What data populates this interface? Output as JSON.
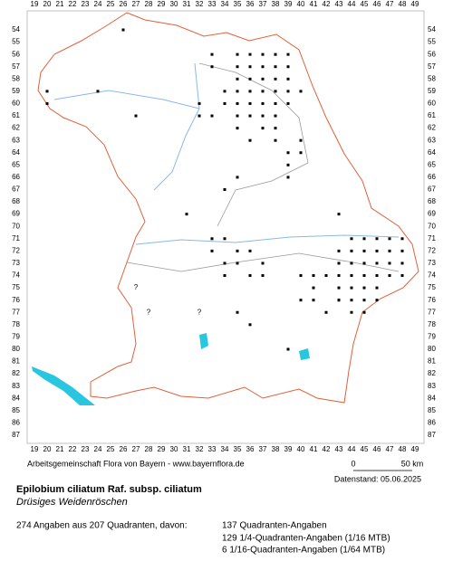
{
  "grid": {
    "columns": [
      19,
      20,
      21,
      22,
      23,
      24,
      25,
      26,
      27,
      28,
      29,
      30,
      31,
      32,
      33,
      34,
      35,
      36,
      37,
      38,
      39,
      40,
      41,
      42,
      43,
      44,
      45,
      46,
      47,
      48,
      49
    ],
    "rows": [
      54,
      55,
      56,
      57,
      58,
      59,
      60,
      61,
      62,
      63,
      64,
      65,
      66,
      67,
      68,
      69,
      70,
      71,
      72,
      73,
      74,
      75,
      76,
      77,
      78,
      79,
      80,
      81,
      82,
      83,
      84,
      85,
      86,
      87
    ]
  },
  "occurrences": [
    [
      26,
      54
    ],
    [
      20,
      59
    ],
    [
      24,
      59
    ],
    [
      20,
      60
    ],
    [
      27,
      61
    ],
    [
      32,
      60
    ],
    [
      32,
      61
    ],
    [
      33,
      56
    ],
    [
      35,
      56
    ],
    [
      36,
      56
    ],
    [
      37,
      56
    ],
    [
      38,
      56
    ],
    [
      39,
      56
    ],
    [
      33,
      57
    ],
    [
      35,
      57
    ],
    [
      36,
      57
    ],
    [
      37,
      57
    ],
    [
      38,
      57
    ],
    [
      39,
      57
    ],
    [
      35,
      58
    ],
    [
      36,
      58
    ],
    [
      37,
      58
    ],
    [
      38,
      58
    ],
    [
      39,
      58
    ],
    [
      34,
      59
    ],
    [
      35,
      59
    ],
    [
      36,
      59
    ],
    [
      37,
      59
    ],
    [
      38,
      59
    ],
    [
      39,
      59
    ],
    [
      40,
      59
    ],
    [
      34,
      60
    ],
    [
      35,
      60
    ],
    [
      36,
      60
    ],
    [
      37,
      60
    ],
    [
      38,
      60
    ],
    [
      39,
      60
    ],
    [
      33,
      61
    ],
    [
      35,
      61
    ],
    [
      36,
      61
    ],
    [
      37,
      61
    ],
    [
      38,
      61
    ],
    [
      35,
      62
    ],
    [
      37,
      62
    ],
    [
      38,
      62
    ],
    [
      36,
      63
    ],
    [
      38,
      63
    ],
    [
      40,
      63
    ],
    [
      39,
      64
    ],
    [
      40,
      64
    ],
    [
      39,
      65
    ],
    [
      35,
      66
    ],
    [
      39,
      66
    ],
    [
      34,
      67
    ],
    [
      31,
      69
    ],
    [
      43,
      69
    ],
    [
      33,
      71
    ],
    [
      34,
      71
    ],
    [
      33,
      72
    ],
    [
      35,
      72
    ],
    [
      36,
      72
    ],
    [
      34,
      73
    ],
    [
      35,
      73
    ],
    [
      37,
      73
    ],
    [
      34,
      74
    ],
    [
      36,
      74
    ],
    [
      37,
      74
    ],
    [
      40,
      74
    ],
    [
      41,
      74
    ],
    [
      41,
      75
    ],
    [
      40,
      76
    ],
    [
      41,
      76
    ],
    [
      43,
      76
    ],
    [
      42,
      77
    ],
    [
      35,
      77
    ],
    [
      36,
      78
    ],
    [
      39,
      80
    ],
    [
      44,
      71
    ],
    [
      45,
      71
    ],
    [
      46,
      71
    ],
    [
      47,
      71
    ],
    [
      48,
      71
    ],
    [
      43,
      72
    ],
    [
      44,
      72
    ],
    [
      45,
      72
    ],
    [
      46,
      72
    ],
    [
      47,
      72
    ],
    [
      48,
      72
    ],
    [
      43,
      73
    ],
    [
      44,
      73
    ],
    [
      45,
      73
    ],
    [
      46,
      73
    ],
    [
      47,
      73
    ],
    [
      48,
      73
    ],
    [
      42,
      74
    ],
    [
      43,
      74
    ],
    [
      44,
      74
    ],
    [
      45,
      74
    ],
    [
      46,
      74
    ],
    [
      47,
      74
    ],
    [
      48,
      74
    ],
    [
      43,
      75
    ],
    [
      44,
      75
    ],
    [
      45,
      75
    ],
    [
      46,
      75
    ],
    [
      43,
      76
    ],
    [
      44,
      76
    ],
    [
      45,
      76
    ],
    [
      46,
      76
    ],
    [
      44,
      77
    ],
    [
      45,
      77
    ]
  ],
  "uncertain": [
    {
      "x": 27,
      "y": 75,
      "label": "?"
    },
    {
      "x": 28,
      "y": 77,
      "label": "?"
    },
    {
      "x": 32,
      "y": 77,
      "label": "?"
    }
  ],
  "footer": {
    "credit": "Arbeitsgemeinschaft Flora von Bayern - www.bayernflora.de",
    "scale_start": "0",
    "scale_end": "50 km",
    "date": "Datenstand: 05.06.2025"
  },
  "species": {
    "name": "Epilobium ciliatum Raf. subsp. ciliatum",
    "common_name": "Drüsiges Weidenröschen"
  },
  "stats": {
    "summary": "274 Angaben aus 207 Quadranten, davon:",
    "lines": [
      "137 Quadranten-Angaben",
      "129 1/4-Quadranten-Angaben (1/16 MTB)",
      "6 1/16-Quadranten-Angaben (1/64 MTB)"
    ]
  }
}
